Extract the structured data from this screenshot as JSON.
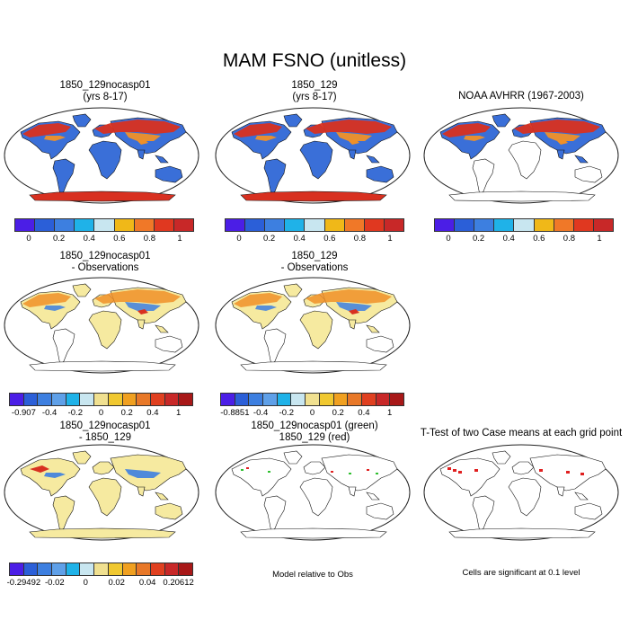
{
  "title": "MAM FSNO (unitless)",
  "panels": {
    "p1": {
      "line1": "1850_129nocasp01",
      "line2": "(yrs 8-17)"
    },
    "p2": {
      "line1": "1850_129",
      "line2": "(yrs 8-17)"
    },
    "p3": {
      "line1": "NOAA AVHRR (1967-2003)"
    },
    "p4": {
      "line1": "1850_129nocasp01",
      "line2": "- Observations"
    },
    "p5": {
      "line1": "1850_129",
      "line2": "- Observations"
    },
    "p6": {
      "line1": "1850_129nocasp01",
      "line2": "- 1850_129"
    },
    "p7": {
      "line1": "1850_129nocasp01 (green)",
      "line2": "1850_129 (red)"
    },
    "p8": {
      "line1": "T-Test of two Case means at each grid point"
    }
  },
  "colorbars": {
    "mean": {
      "colors": [
        "#4b1ee6",
        "#2b5fd8",
        "#3d7fe0",
        "#1fb2e8",
        "#c8e6f0",
        "#f0b818",
        "#f07828",
        "#e03820",
        "#c82828"
      ],
      "ticks": [
        "0",
        "0.2",
        "0.4",
        "0.6",
        "0.8",
        "1"
      ]
    },
    "diff1": {
      "colors": [
        "#4b1ee6",
        "#2b5fd8",
        "#3d7fe0",
        "#5fa0e8",
        "#1fb2e8",
        "#c8e6f0",
        "#f0e090",
        "#f0c830",
        "#f0a020",
        "#e87828",
        "#e04020",
        "#c82828",
        "#a81818"
      ],
      "ticks": [
        "-0.907",
        "-0.4",
        "-0.2",
        "0",
        "0.2",
        "0.4",
        "1"
      ]
    },
    "diff2": {
      "colors": [
        "#4b1ee6",
        "#2b5fd8",
        "#3d7fe0",
        "#5fa0e8",
        "#1fb2e8",
        "#c8e6f0",
        "#f0e090",
        "#f0c830",
        "#f0a020",
        "#e87828",
        "#e04020",
        "#c82828",
        "#a81818"
      ],
      "ticks": [
        "-0.8851",
        "-0.4",
        "-0.2",
        "0",
        "0.2",
        "0.4",
        "1"
      ]
    },
    "diff3": {
      "colors": [
        "#4b1ee6",
        "#2b5fd8",
        "#3d7fe0",
        "#5fa0e8",
        "#1fb2e8",
        "#c8e6f0",
        "#f0e090",
        "#f0c830",
        "#f0a020",
        "#e87828",
        "#e04020",
        "#c82828",
        "#a81818"
      ],
      "ticks": [
        "-0.29492",
        "-0.02",
        "0",
        "0.02",
        "0.04",
        "0.20612"
      ]
    }
  },
  "captions": {
    "model_rel": "Model relative to Obs",
    "signif": "Cells are significant at 0.1 level"
  },
  "colors": {
    "land_mean": "#3a6fd8",
    "land_diff": "#f6eaa0",
    "snow_red": "#d83020",
    "snow_orange": "#f09028",
    "snow_yellow": "#f0c830",
    "sig_green": "#30c030",
    "sig_red": "#e02020"
  }
}
